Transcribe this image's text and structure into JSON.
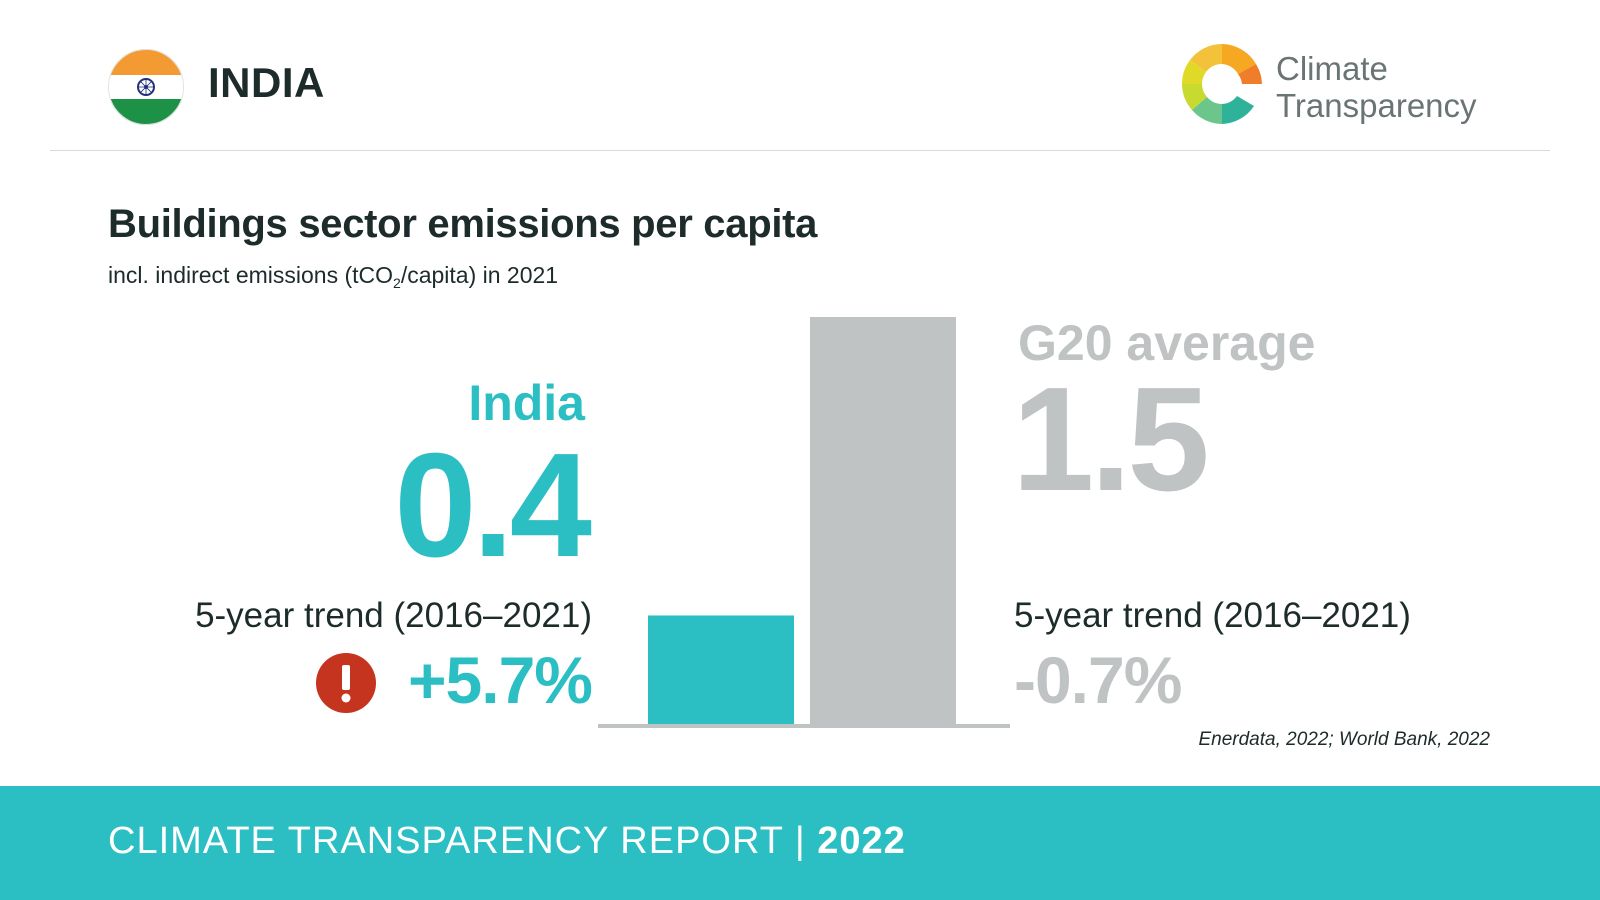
{
  "header": {
    "country": "INDIA",
    "flag_icon": "india-flag-icon",
    "logo": {
      "line1": "Climate",
      "line2": "Transparency"
    }
  },
  "title": "Buildings sector emissions per capita",
  "subtitle": {
    "before": "incl. indirect emissions (tCO",
    "sub": "2",
    "after": "/capita) in 2021"
  },
  "india": {
    "label": "India",
    "value": "0.4",
    "trend_label": "5-year trend (2016–2021)",
    "trend_value": "+5.7%",
    "trend_icon": "exclamation-warning-icon"
  },
  "g20": {
    "label": "G20 average",
    "value": "1.5",
    "trend_label": "5-year trend (2016–2021)",
    "trend_value": "-0.7%"
  },
  "source": "Enerdata, 2022; World Bank, 2022",
  "footer": {
    "text": "CLIMATE TRANSPARENCY REPORT | ",
    "year": "2022"
  },
  "colors": {
    "accent": "#2bbfc4",
    "g20_gray": "#bfc3c4",
    "warning": "#c4341e",
    "baseline": "#bfc3c4"
  },
  "chart_data": {
    "type": "bar",
    "categories": [
      "India",
      "G20 average"
    ],
    "values": [
      0.4,
      1.5
    ],
    "colors": [
      "#2bbfc4",
      "#bfc3c4"
    ],
    "title": "Buildings sector emissions per capita",
    "ylabel": "tCO2/capita",
    "ylim": [
      0,
      1.5
    ]
  }
}
